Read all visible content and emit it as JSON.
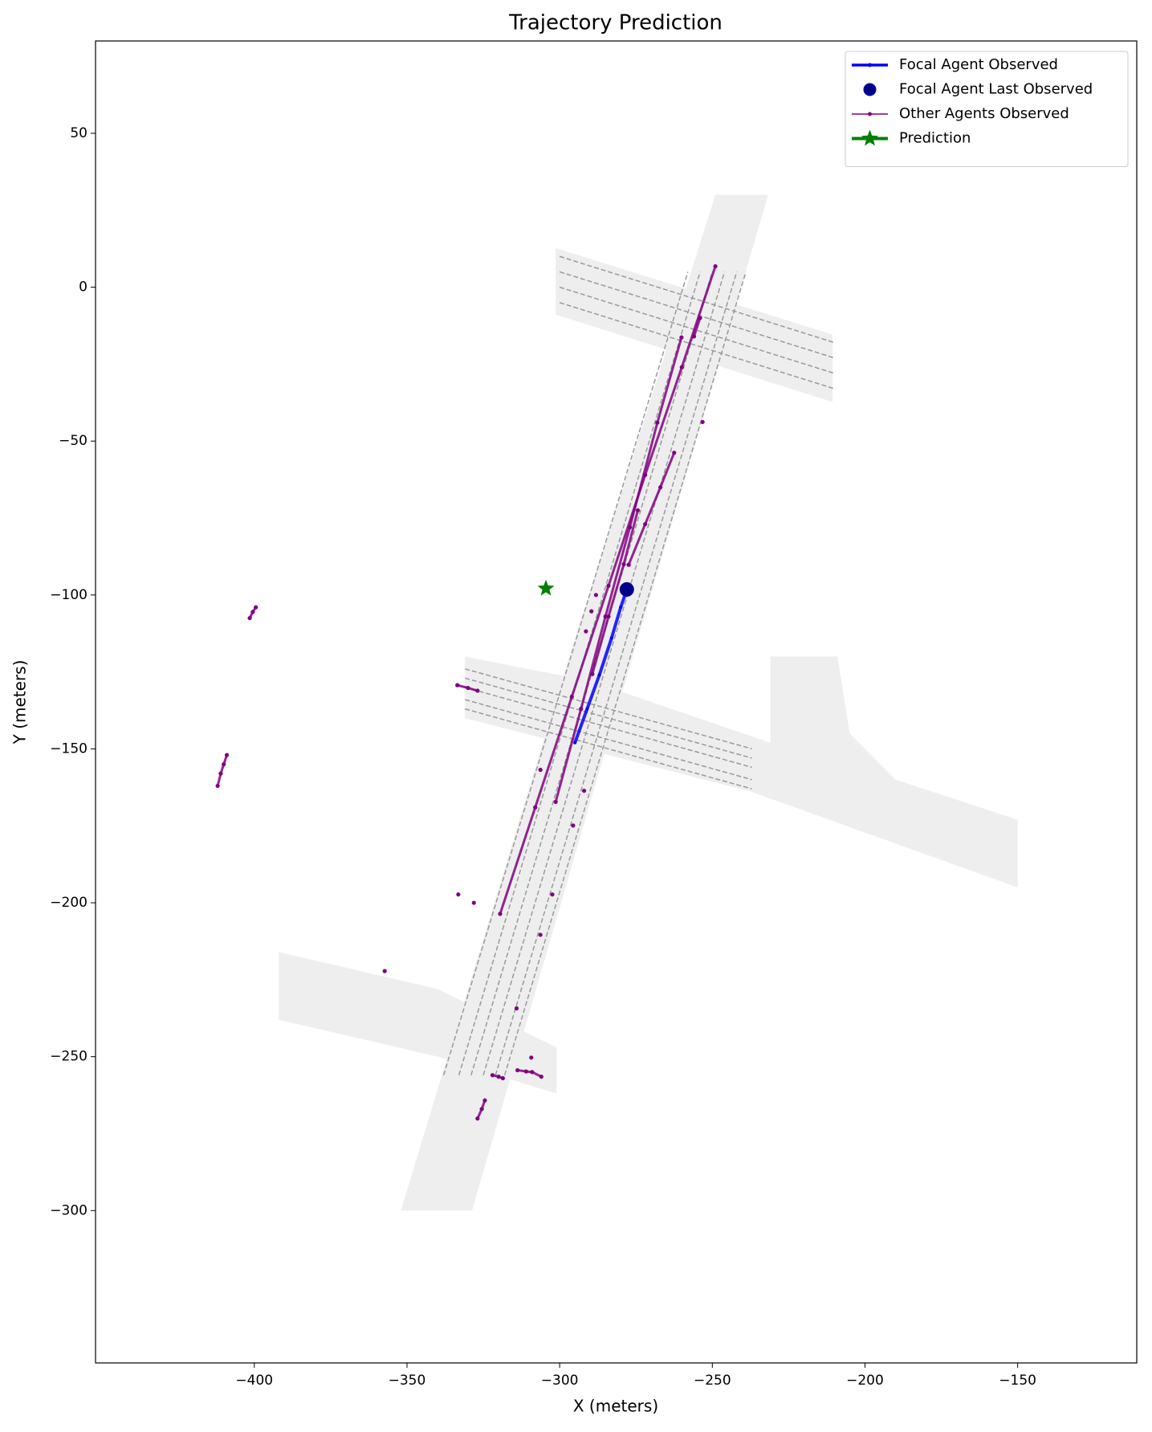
{
  "chart_data": {
    "type": "scatter",
    "title": "Trajectory Prediction",
    "xlabel": "X (meters)",
    "ylabel": "Y (meters)",
    "xlim": [
      -452,
      -111
    ],
    "ylim": [
      -349.5,
      80
    ],
    "xticks": [
      {
        "value": -400,
        "label": "−400"
      },
      {
        "value": -350,
        "label": "−350"
      },
      {
        "value": -300,
        "label": "−300"
      },
      {
        "value": -250,
        "label": "−250"
      },
      {
        "value": -200,
        "label": "−200"
      },
      {
        "value": -150,
        "label": "−150"
      }
    ],
    "yticks": [
      50,
      0,
      {
        "value": -50,
        "label": "−50"
      },
      {
        "value": -100,
        "label": "−100"
      },
      {
        "value": -150,
        "label": "−150"
      },
      {
        "value": -200,
        "label": "−200"
      },
      {
        "value": -250,
        "label": "−250"
      },
      {
        "value": -300,
        "label": "−300"
      }
    ],
    "legend": "upper right",
    "map": {
      "area_color": "#eeeeee",
      "lane_color": "#999999",
      "areas": [
        {
          "x": [
            -249,
            -231.7,
            -282,
            -328.7,
            -352,
            -300
          ],
          "y": [
            30,
            30,
            -140,
            -300,
            -300,
            -130
          ]
        },
        {
          "x": [
            -301.3,
            -210.6,
            -210.6,
            -301.3
          ],
          "y": [
            12.7,
            -15.4,
            -37.3,
            -8.9
          ]
        },
        {
          "x": [
            -331,
            -290,
            -231,
            -231,
            -209,
            -205,
            -190,
            -150,
            -150,
            -237,
            -331
          ],
          "y": [
            -120,
            -128,
            -148,
            -120,
            -120,
            -145,
            -160,
            -173,
            -195,
            -164,
            -140
          ]
        },
        {
          "x": [
            -392,
            -340,
            -301,
            -301,
            -340,
            -392
          ],
          "y": [
            -216,
            -228,
            -247,
            -262,
            -250,
            -238
          ]
        }
      ],
      "lanes": [
        {
          "x": [
            -338,
            -258
          ],
          "y": [
            -256,
            5
          ]
        },
        {
          "x": [
            -333,
            -254
          ],
          "y": [
            -256,
            5
          ]
        },
        {
          "x": [
            -329,
            -250
          ],
          "y": [
            -256,
            5
          ]
        },
        {
          "x": [
            -325,
            -246
          ],
          "y": [
            -256,
            5
          ]
        },
        {
          "x": [
            -321,
            -242
          ],
          "y": [
            -256,
            5
          ]
        },
        {
          "x": [
            -318,
            -239
          ],
          "y": [
            -256,
            5
          ]
        },
        {
          "x": [
            -300,
            -210
          ],
          "y": [
            10,
            -18
          ]
        },
        {
          "x": [
            -300,
            -210
          ],
          "y": [
            5,
            -23
          ]
        },
        {
          "x": [
            -300,
            -210
          ],
          "y": [
            0,
            -28
          ]
        },
        {
          "x": [
            -300,
            -210
          ],
          "y": [
            -5,
            -33
          ]
        },
        {
          "x": [
            -331,
            -237
          ],
          "y": [
            -124,
            -150
          ]
        },
        {
          "x": [
            -331,
            -237
          ],
          "y": [
            -127,
            -153
          ]
        },
        {
          "x": [
            -331,
            -237
          ],
          "y": [
            -130,
            -156
          ]
        },
        {
          "x": [
            -331,
            -237
          ],
          "y": [
            -134,
            -160
          ]
        },
        {
          "x": [
            -331,
            -237
          ],
          "y": [
            -137,
            -163
          ]
        }
      ]
    },
    "series": [
      {
        "name": "Focal Agent Observed",
        "color": "#0000ff",
        "style": "line",
        "x": [
          -295,
          -291,
          -287,
          -283,
          -280,
          -278
        ],
        "y": [
          -148,
          -137,
          -126,
          -114,
          -104,
          -98.2
        ]
      },
      {
        "name": "Focal Agent Last Observed",
        "color": "#00008b",
        "style": "dot",
        "x": [
          -278
        ],
        "y": [
          -98.2
        ]
      },
      {
        "name": "Other Agents Observed",
        "color": "#800080",
        "style": "tracks",
        "tracks": [
          {
            "x": [
              -401.5,
              -400.5,
              -399.5
            ],
            "y": [
              -107.5,
              -105.5,
              -104
            ]
          },
          {
            "x": [
              -412,
              -411,
              -410,
              -409
            ],
            "y": [
              -162,
              -158,
              -155,
              -152
            ]
          },
          {
            "x": [
              -333.5,
              -330,
              -326.9
            ],
            "y": [
              -129.3,
              -130.2,
              -131.1
            ]
          },
          {
            "x": [
              -319.5,
              -308,
              -296,
              -284,
              -272,
              -260,
              -249
            ],
            "y": [
              -203.6,
              -169,
              -133,
              -97,
              -61,
              -26,
              6.8
            ]
          },
          {
            "x": [
              -301.3,
              -293,
              -285,
              -277,
              -268,
              -260.1
            ],
            "y": [
              -167.2,
              -137,
              -107,
              -78,
              -44,
              -16.3
            ]
          },
          {
            "x": [
              -289.3,
              -284,
              -279,
              -274.4
            ],
            "y": [
              -125.7,
              -107,
              -90,
              -72.5
            ]
          },
          {
            "x": [
              -277.4,
              -272,
              -267,
              -262.5
            ],
            "y": [
              -90.2,
              -77,
              -65,
              -53.8
            ]
          },
          {
            "x": [
              -256,
              -254
            ],
            "y": [
              -16,
              -10
            ]
          },
          {
            "x": [
              -313.8,
              -311,
              -309,
              -306
            ],
            "y": [
              -254.4,
              -254.8,
              -255,
              -256.5
            ]
          },
          {
            "x": [
              -322,
              -320,
              -318.6
            ],
            "y": [
              -256,
              -256.5,
              -257
            ]
          },
          {
            "x": [
              -326.9,
              -325.5,
              -324.5
            ],
            "y": [
              -270.1,
              -267,
              -264.2
            ]
          },
          {
            "x": [
              -253.2
            ],
            "y": [
              -43.8
            ]
          },
          {
            "x": [
              -288.1
            ],
            "y": [
              -100
            ]
          },
          {
            "x": [
              -289.6
            ],
            "y": [
              -105.3
            ]
          },
          {
            "x": [
              -291.4
            ],
            "y": [
              -111.8
            ]
          },
          {
            "x": [
              -306.3
            ],
            "y": [
              -156.8
            ]
          },
          {
            "x": [
              -292
            ],
            "y": [
              -163.6
            ]
          },
          {
            "x": [
              -295.6
            ],
            "y": [
              -174.9
            ]
          },
          {
            "x": [
              -302.4
            ],
            "y": [
              -197.3
            ]
          },
          {
            "x": [
              -333.2
            ],
            "y": [
              -197.3
            ]
          },
          {
            "x": [
              -328.1
            ],
            "y": [
              -200
            ]
          },
          {
            "x": [
              -306.3
            ],
            "y": [
              -210.4
            ]
          },
          {
            "x": [
              -357.3
            ],
            "y": [
              -222.2
            ]
          },
          {
            "x": [
              -314.1
            ],
            "y": [
              -234.3
            ]
          },
          {
            "x": [
              -309.3
            ],
            "y": [
              -250.3
            ]
          }
        ]
      },
      {
        "name": "Prediction",
        "color": "#008000",
        "style": "star",
        "x": [
          -304.5
        ],
        "y": [
          -97.9
        ]
      }
    ]
  }
}
